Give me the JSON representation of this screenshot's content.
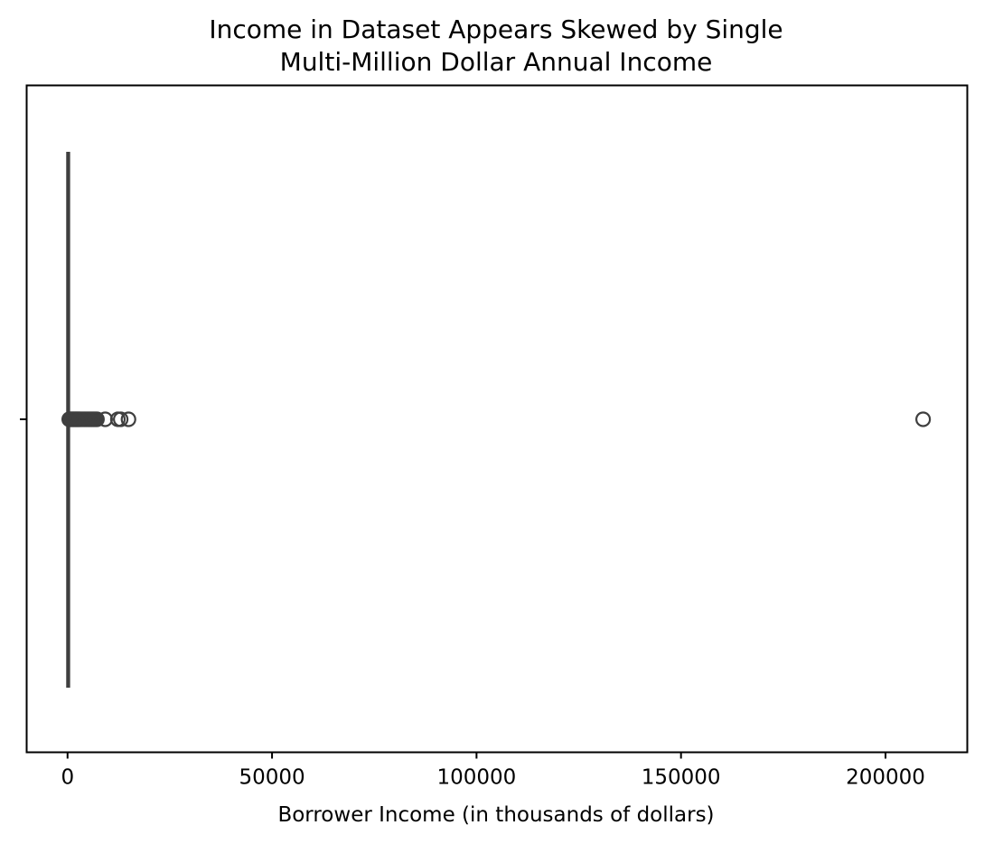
{
  "chart_data": {
    "type": "box",
    "orientation": "horizontal",
    "title_lines": [
      "Income in Dataset Appears Skewed by Single",
      "Multi-Million Dollar Annual Income"
    ],
    "xlabel": "Borrower Income (in thousands of dollars)",
    "ylabel": "",
    "xlim": [
      -10000,
      220000
    ],
    "xticks": [
      0,
      50000,
      100000,
      150000,
      200000
    ],
    "xtick_labels": [
      "0",
      "50000",
      "100000",
      "150000",
      "200000"
    ],
    "grid": false,
    "legend": "none",
    "box": {
      "q1": 50,
      "median": 100,
      "q3": 150,
      "whisker_low": 0,
      "whisker_high": 300
    },
    "outliers": [
      400,
      600,
      800,
      1000,
      1200,
      1400,
      1600,
      1800,
      2000,
      2200,
      2400,
      2600,
      2800,
      3000,
      3300,
      3600,
      3900,
      4200,
      4500,
      4800,
      5100,
      5400,
      5700,
      6000,
      6300,
      6600,
      6900,
      7200,
      9200,
      12300,
      13000,
      14900,
      209200
    ],
    "colors": {
      "box_stroke": "#3f3f3f",
      "outlier_stroke": "#3f3f3f",
      "axes": "#000000"
    }
  }
}
